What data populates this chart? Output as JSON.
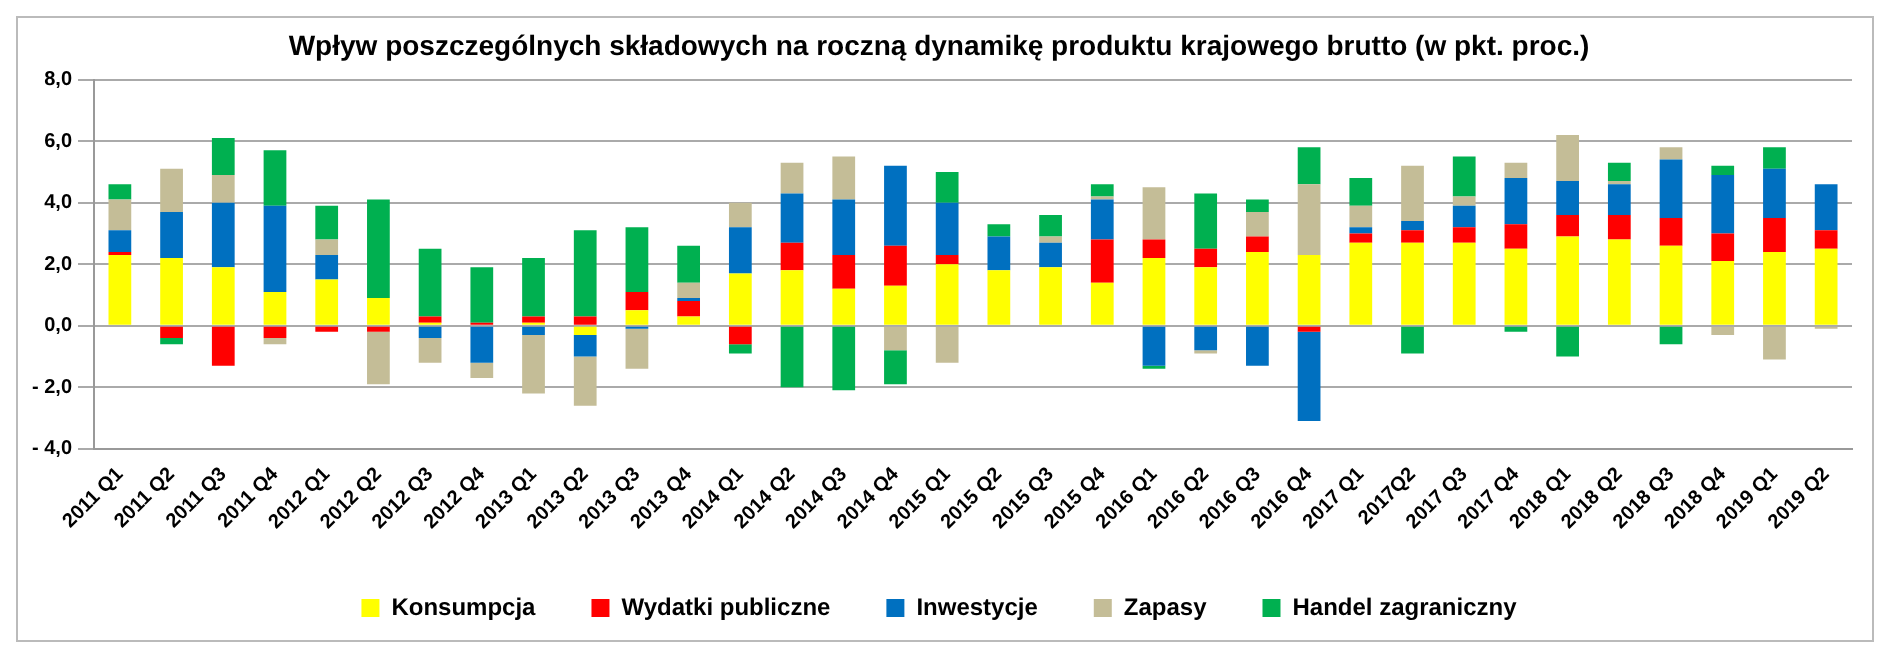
{
  "chart_data": {
    "type": "bar",
    "title": "Wpływ poszczególnych składowych na roczną dynamikę produktu krajowego brutto (w pkt. proc.)",
    "stacked": true,
    "categories": [
      "2011 Q1",
      "2011 Q2",
      "2011 Q3",
      "2011 Q4",
      "2012 Q1",
      "2012 Q2",
      "2012 Q3",
      "2012 Q4",
      "2013 Q1",
      "2013 Q2",
      "2013 Q3",
      "2013 Q4",
      "2014 Q1",
      "2014 Q2",
      "2014 Q3",
      "2014 Q4",
      "2015 Q1",
      "2015 Q2",
      "2015 Q3",
      "2015 Q4",
      "2016 Q1",
      "2016 Q2",
      "2016 Q3",
      "2016 Q4",
      "2017 Q1",
      "2017Q2",
      "2017 Q3",
      "2017 Q4",
      "2018 Q1",
      "2018 Q2",
      "2018 Q3",
      "2018 Q4",
      "2019 Q1",
      "2019 Q2"
    ],
    "series": [
      {
        "name": "Konsumpcja",
        "color": "#ffff00",
        "values": [
          2.3,
          2.2,
          1.9,
          1.1,
          1.5,
          0.9,
          0.1,
          0,
          0.1,
          -0.3,
          0.5,
          0.3,
          1.7,
          1.8,
          1.2,
          1.3,
          2.0,
          1.8,
          1.9,
          1.4,
          2.2,
          1.9,
          2.4,
          2.3,
          2.7,
          2.7,
          2.7,
          2.5,
          2.9,
          2.8,
          2.6,
          2.1,
          2.4,
          2.5
        ]
      },
      {
        "name": "Wydatki publiczne",
        "color": "#ff0000",
        "values": [
          0.1,
          -0.4,
          -1.3,
          -0.4,
          -0.2,
          -0.2,
          0.2,
          0.1,
          0.2,
          0.3,
          0.6,
          0.5,
          -0.6,
          0.9,
          1.1,
          1.3,
          0.3,
          0,
          0,
          1.4,
          0.6,
          0.6,
          0.5,
          -0.2,
          0.3,
          0.4,
          0.5,
          0.8,
          0.7,
          0.8,
          0.9,
          0.9,
          1.1,
          0.6
        ]
      },
      {
        "name": "Inwestycje",
        "color": "#0070c0",
        "values": [
          0.7,
          1.5,
          2.1,
          2.8,
          0.8,
          0,
          -0.4,
          -1.2,
          -0.3,
          -0.7,
          -0.1,
          0.1,
          1.5,
          1.6,
          1.8,
          2.6,
          1.7,
          1.1,
          0.8,
          1.3,
          -1.3,
          -0.8,
          -1.3,
          -2.9,
          0.2,
          0.3,
          0.7,
          1.5,
          1.1,
          1.0,
          1.9,
          1.9,
          1.6,
          1.5
        ]
      },
      {
        "name": "Zapasy",
        "color": "#c4bd97",
        "values": [
          1.0,
          1.4,
          0.9,
          -0.2,
          0.5,
          -1.7,
          -0.8,
          -0.5,
          -1.9,
          -1.6,
          -1.3,
          0.5,
          0.8,
          1.0,
          1.4,
          -0.8,
          -1.2,
          0,
          0.2,
          0.1,
          1.7,
          -0.1,
          0.8,
          2.3,
          0.7,
          1.8,
          0.3,
          0.5,
          1.5,
          0.1,
          0.4,
          -0.3,
          -1.1,
          -0.1
        ]
      },
      {
        "name": "Handel zagraniczny",
        "color": "#00b050",
        "values": [
          0.5,
          -0.2,
          1.2,
          1.8,
          1.1,
          3.2,
          2.2,
          1.8,
          1.9,
          2.8,
          2.1,
          1.2,
          -0.3,
          -2.0,
          -2.1,
          -1.1,
          1.0,
          0.4,
          0.7,
          0.4,
          -0.1,
          1.8,
          0.4,
          1.2,
          0.9,
          -0.9,
          1.3,
          -0.2,
          -1.0,
          0.6,
          -0.6,
          0.3,
          0.7,
          0
        ]
      }
    ],
    "ylim": [
      -4,
      8
    ],
    "yticks": [
      {
        "value": -4,
        "label": "- 4,0"
      },
      {
        "value": -2,
        "label": "- 2,0"
      },
      {
        "value": 0,
        "label": "0,0"
      },
      {
        "value": 2,
        "label": "2,0"
      },
      {
        "value": 4,
        "label": "4,0"
      },
      {
        "value": 6,
        "label": "6,0"
      },
      {
        "value": 8,
        "label": "8,0"
      }
    ],
    "grid": "y",
    "legend": "bottom"
  }
}
